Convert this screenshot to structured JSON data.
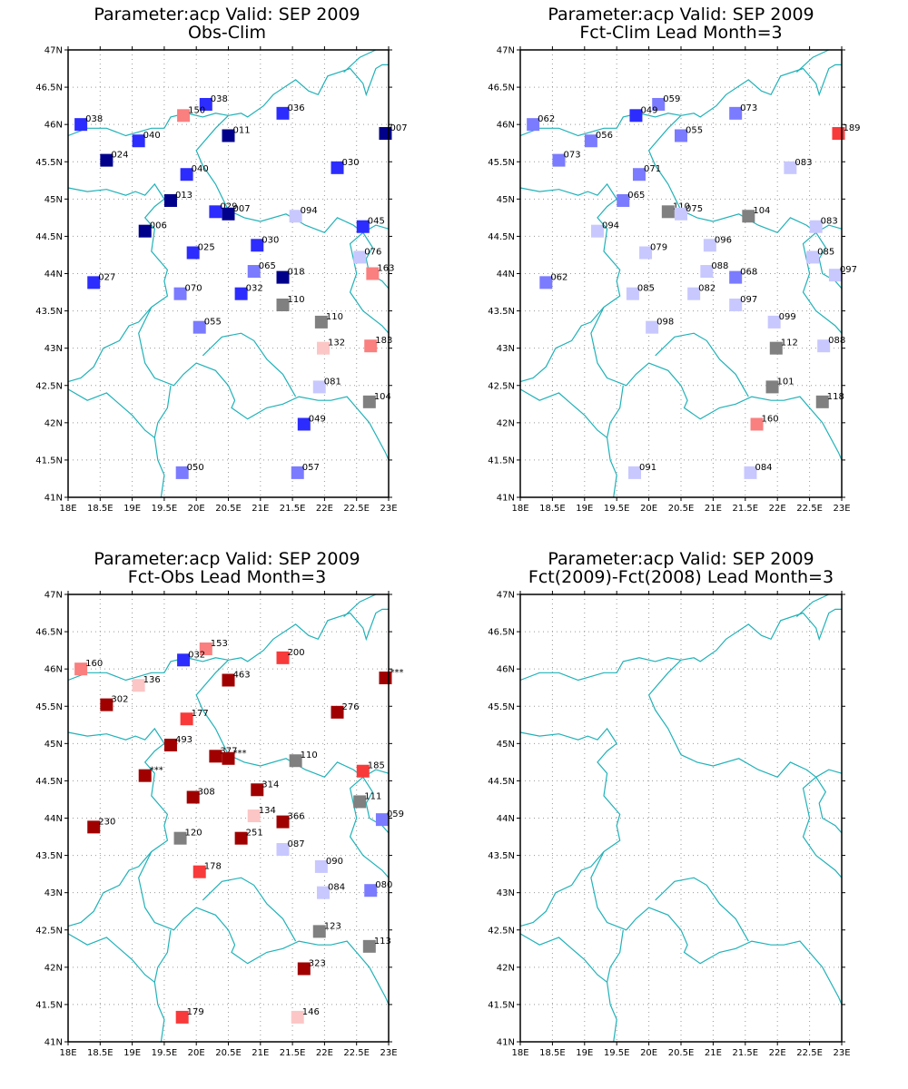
{
  "figure": {
    "colors": {
      "coast": "#20b2b8",
      "grid": "#999999",
      "frame": "#000000",
      "gray": "#808080"
    },
    "axes": {
      "lon_ticks": [
        "18E",
        "18.5E",
        "19E",
        "19.5E",
        "20E",
        "20.5E",
        "21E",
        "21.5E",
        "22E",
        "22.5E",
        "23E"
      ],
      "lat_ticks": [
        "47N",
        "46.5N",
        "46N",
        "45.5N",
        "45N",
        "44.5N",
        "44N",
        "43.5N",
        "43N",
        "42.5N",
        "42N",
        "41.5N",
        "41N"
      ],
      "lon_range": [
        18,
        23
      ],
      "lat_range": [
        41,
        47
      ]
    }
  },
  "panels": [
    {
      "title1": "Parameter:acp Valid: SEP 2009",
      "title2": "Obs-Clim",
      "stations": [
        {
          "lon": 18.2,
          "lat": 46.0,
          "label": "038",
          "color": "#2c2cff"
        },
        {
          "lon": 19.1,
          "lat": 45.78,
          "label": "040",
          "color": "#2c2cff"
        },
        {
          "lon": 18.6,
          "lat": 45.52,
          "label": "024",
          "color": "#00008b"
        },
        {
          "lon": 20.15,
          "lat": 46.27,
          "label": "038",
          "color": "#2c2cff"
        },
        {
          "lon": 19.8,
          "lat": 46.12,
          "label": "150",
          "color": "#fa7f7f"
        },
        {
          "lon": 20.5,
          "lat": 45.85,
          "label": "011",
          "color": "#00008b"
        },
        {
          "lon": 21.35,
          "lat": 46.15,
          "label": "036",
          "color": "#2c2cff"
        },
        {
          "lon": 22.95,
          "lat": 45.88,
          "label": "007",
          "color": "#00008b"
        },
        {
          "lon": 19.85,
          "lat": 45.33,
          "label": "040",
          "color": "#2c2cff"
        },
        {
          "lon": 22.2,
          "lat": 45.42,
          "label": "030",
          "color": "#2c2cff"
        },
        {
          "lon": 19.6,
          "lat": 44.98,
          "label": "013",
          "color": "#00008b"
        },
        {
          "lon": 20.3,
          "lat": 44.83,
          "label": "029",
          "color": "#2c2cff"
        },
        {
          "lon": 20.5,
          "lat": 44.8,
          "label": "007",
          "color": "#00008b"
        },
        {
          "lon": 21.55,
          "lat": 44.77,
          "label": "094",
          "color": "#c8c8ff"
        },
        {
          "lon": 22.6,
          "lat": 44.63,
          "label": "045",
          "color": "#2c2cff"
        },
        {
          "lon": 19.2,
          "lat": 44.57,
          "label": "006",
          "color": "#00008b"
        },
        {
          "lon": 19.95,
          "lat": 44.28,
          "label": "025",
          "color": "#2c2cff"
        },
        {
          "lon": 20.95,
          "lat": 44.38,
          "label": "030",
          "color": "#2c2cff"
        },
        {
          "lon": 22.55,
          "lat": 44.22,
          "label": "076",
          "color": "#c8c8ff"
        },
        {
          "lon": 18.4,
          "lat": 43.88,
          "label": "027",
          "color": "#2c2cff"
        },
        {
          "lon": 20.9,
          "lat": 44.03,
          "label": "065",
          "color": "#7b7bff"
        },
        {
          "lon": 21.35,
          "lat": 43.95,
          "label": "018",
          "color": "#00008b"
        },
        {
          "lon": 22.75,
          "lat": 44.0,
          "label": "163",
          "color": "#fa7f7f"
        },
        {
          "lon": 19.75,
          "lat": 43.73,
          "label": "070",
          "color": "#7b7bff"
        },
        {
          "lon": 20.7,
          "lat": 43.73,
          "label": "032",
          "color": "#2c2cff"
        },
        {
          "lon": 21.35,
          "lat": 43.58,
          "label": "110",
          "color": "#808080"
        },
        {
          "lon": 21.95,
          "lat": 43.35,
          "label": "110",
          "color": "#808080"
        },
        {
          "lon": 20.05,
          "lat": 43.28,
          "label": "055",
          "color": "#7b7bff"
        },
        {
          "lon": 21.98,
          "lat": 43.0,
          "label": "132",
          "color": "#fcc6c6"
        },
        {
          "lon": 22.72,
          "lat": 43.03,
          "label": "183",
          "color": "#fa7f7f"
        },
        {
          "lon": 21.92,
          "lat": 42.48,
          "label": "081",
          "color": "#c8c8ff"
        },
        {
          "lon": 22.7,
          "lat": 42.28,
          "label": "104",
          "color": "#808080"
        },
        {
          "lon": 21.68,
          "lat": 41.98,
          "label": "049",
          "color": "#2c2cff"
        },
        {
          "lon": 19.78,
          "lat": 41.33,
          "label": "050",
          "color": "#7b7bff"
        },
        {
          "lon": 21.58,
          "lat": 41.33,
          "label": "057",
          "color": "#7b7bff"
        }
      ]
    },
    {
      "title1": "Parameter:acp Valid: SEP 2009",
      "title2": "Fct-Clim Lead Month=3",
      "stations": [
        {
          "lon": 18.2,
          "lat": 46.0,
          "label": "062",
          "color": "#7b7bff"
        },
        {
          "lon": 19.1,
          "lat": 45.78,
          "label": "056",
          "color": "#7b7bff"
        },
        {
          "lon": 18.6,
          "lat": 45.52,
          "label": "073",
          "color": "#7b7bff"
        },
        {
          "lon": 20.15,
          "lat": 46.27,
          "label": "059",
          "color": "#7b7bff"
        },
        {
          "lon": 19.8,
          "lat": 46.12,
          "label": "049",
          "color": "#2c2cff"
        },
        {
          "lon": 20.5,
          "lat": 45.85,
          "label": "055",
          "color": "#7b7bff"
        },
        {
          "lon": 21.35,
          "lat": 46.15,
          "label": "073",
          "color": "#7b7bff"
        },
        {
          "lon": 22.95,
          "lat": 45.88,
          "label": "189",
          "color": "#f83a3a"
        },
        {
          "lon": 19.85,
          "lat": 45.33,
          "label": "071",
          "color": "#7b7bff"
        },
        {
          "lon": 22.2,
          "lat": 45.42,
          "label": "083",
          "color": "#c8c8ff"
        },
        {
          "lon": 19.6,
          "lat": 44.98,
          "label": "065",
          "color": "#7b7bff"
        },
        {
          "lon": 20.3,
          "lat": 44.83,
          "label": "110",
          "color": "#808080"
        },
        {
          "lon": 20.5,
          "lat": 44.8,
          "label": "075",
          "color": "#c8c8ff"
        },
        {
          "lon": 21.55,
          "lat": 44.77,
          "label": "104",
          "color": "#808080"
        },
        {
          "lon": 22.6,
          "lat": 44.63,
          "label": "083",
          "color": "#c8c8ff"
        },
        {
          "lon": 19.2,
          "lat": 44.57,
          "label": "094",
          "color": "#c8c8ff"
        },
        {
          "lon": 19.95,
          "lat": 44.28,
          "label": "079",
          "color": "#c8c8ff"
        },
        {
          "lon": 20.95,
          "lat": 44.38,
          "label": "096",
          "color": "#c8c8ff"
        },
        {
          "lon": 22.55,
          "lat": 44.22,
          "label": "085",
          "color": "#c8c8ff"
        },
        {
          "lon": 18.4,
          "lat": 43.88,
          "label": "062",
          "color": "#7b7bff"
        },
        {
          "lon": 20.9,
          "lat": 44.03,
          "label": "088",
          "color": "#c8c8ff"
        },
        {
          "lon": 21.35,
          "lat": 43.95,
          "label": "068",
          "color": "#7b7bff"
        },
        {
          "lon": 22.9,
          "lat": 43.98,
          "label": "097",
          "color": "#c8c8ff"
        },
        {
          "lon": 19.75,
          "lat": 43.73,
          "label": "085",
          "color": "#c8c8ff"
        },
        {
          "lon": 20.7,
          "lat": 43.73,
          "label": "082",
          "color": "#c8c8ff"
        },
        {
          "lon": 21.35,
          "lat": 43.58,
          "label": "097",
          "color": "#c8c8ff"
        },
        {
          "lon": 21.95,
          "lat": 43.35,
          "label": "099",
          "color": "#c8c8ff"
        },
        {
          "lon": 20.05,
          "lat": 43.28,
          "label": "098",
          "color": "#c8c8ff"
        },
        {
          "lon": 21.98,
          "lat": 43.0,
          "label": "112",
          "color": "#808080"
        },
        {
          "lon": 22.72,
          "lat": 43.03,
          "label": "088",
          "color": "#c8c8ff"
        },
        {
          "lon": 21.92,
          "lat": 42.48,
          "label": "101",
          "color": "#808080"
        },
        {
          "lon": 22.7,
          "lat": 42.28,
          "label": "118",
          "color": "#808080"
        },
        {
          "lon": 21.68,
          "lat": 41.98,
          "label": "160",
          "color": "#fa7f7f"
        },
        {
          "lon": 19.78,
          "lat": 41.33,
          "label": "091",
          "color": "#c8c8ff"
        },
        {
          "lon": 21.58,
          "lat": 41.33,
          "label": "084",
          "color": "#c8c8ff"
        }
      ]
    },
    {
      "title1": "Parameter:acp Valid: SEP 2009",
      "title2": "Fct-Obs Lead Month=3",
      "stations": [
        {
          "lon": 18.2,
          "lat": 46.0,
          "label": "160",
          "color": "#fa7f7f"
        },
        {
          "lon": 19.1,
          "lat": 45.78,
          "label": "136",
          "color": "#fcc6c6"
        },
        {
          "lon": 18.6,
          "lat": 45.52,
          "label": "302",
          "color": "#a00000"
        },
        {
          "lon": 20.15,
          "lat": 46.27,
          "label": "153",
          "color": "#fa7f7f"
        },
        {
          "lon": 19.8,
          "lat": 46.12,
          "label": "032",
          "color": "#2c2cff"
        },
        {
          "lon": 20.5,
          "lat": 45.85,
          "label": "463",
          "color": "#a00000"
        },
        {
          "lon": 21.35,
          "lat": 46.15,
          "label": "200",
          "color": "#f83a3a"
        },
        {
          "lon": 22.95,
          "lat": 45.88,
          "label": "***",
          "color": "#a00000"
        },
        {
          "lon": 19.85,
          "lat": 45.33,
          "label": "177",
          "color": "#f83a3a"
        },
        {
          "lon": 22.2,
          "lat": 45.42,
          "label": "276",
          "color": "#a00000"
        },
        {
          "lon": 19.6,
          "lat": 44.98,
          "label": "493",
          "color": "#a00000"
        },
        {
          "lon": 20.3,
          "lat": 44.83,
          "label": "377",
          "color": "#a00000"
        },
        {
          "lon": 20.5,
          "lat": 44.8,
          "label": "***",
          "color": "#a00000"
        },
        {
          "lon": 21.55,
          "lat": 44.77,
          "label": "110",
          "color": "#808080"
        },
        {
          "lon": 22.6,
          "lat": 44.63,
          "label": "185",
          "color": "#f83a3a"
        },
        {
          "lon": 19.2,
          "lat": 44.57,
          "label": "***",
          "color": "#a00000"
        },
        {
          "lon": 19.95,
          "lat": 44.28,
          "label": "308",
          "color": "#a00000"
        },
        {
          "lon": 20.95,
          "lat": 44.38,
          "label": "314",
          "color": "#a00000"
        },
        {
          "lon": 22.55,
          "lat": 44.22,
          "label": "111",
          "color": "#808080"
        },
        {
          "lon": 18.4,
          "lat": 43.88,
          "label": "230",
          "color": "#a00000"
        },
        {
          "lon": 20.9,
          "lat": 44.03,
          "label": "134",
          "color": "#fcc6c6"
        },
        {
          "lon": 21.35,
          "lat": 43.95,
          "label": "366",
          "color": "#a00000"
        },
        {
          "lon": 22.9,
          "lat": 43.98,
          "label": "059",
          "color": "#7b7bff"
        },
        {
          "lon": 19.75,
          "lat": 43.73,
          "label": "120",
          "color": "#808080"
        },
        {
          "lon": 20.7,
          "lat": 43.73,
          "label": "251",
          "color": "#a00000"
        },
        {
          "lon": 21.35,
          "lat": 43.58,
          "label": "087",
          "color": "#c8c8ff"
        },
        {
          "lon": 21.95,
          "lat": 43.35,
          "label": "090",
          "color": "#c8c8ff"
        },
        {
          "lon": 20.05,
          "lat": 43.28,
          "label": "178",
          "color": "#f83a3a"
        },
        {
          "lon": 21.98,
          "lat": 43.0,
          "label": "084",
          "color": "#c8c8ff"
        },
        {
          "lon": 22.72,
          "lat": 43.03,
          "label": "080",
          "color": "#7b7bff"
        },
        {
          "lon": 21.92,
          "lat": 42.48,
          "label": "123",
          "color": "#808080"
        },
        {
          "lon": 22.7,
          "lat": 42.28,
          "label": "113",
          "color": "#808080"
        },
        {
          "lon": 21.68,
          "lat": 41.98,
          "label": "323",
          "color": "#a00000"
        },
        {
          "lon": 19.78,
          "lat": 41.33,
          "label": "179",
          "color": "#f83a3a"
        },
        {
          "lon": 21.58,
          "lat": 41.33,
          "label": "146",
          "color": "#fcc6c6"
        }
      ]
    },
    {
      "title1": "Parameter:acp Valid: SEP 2009",
      "title2": "Fct(2009)-Fct(2008) Lead Month=3",
      "stations": []
    }
  ]
}
